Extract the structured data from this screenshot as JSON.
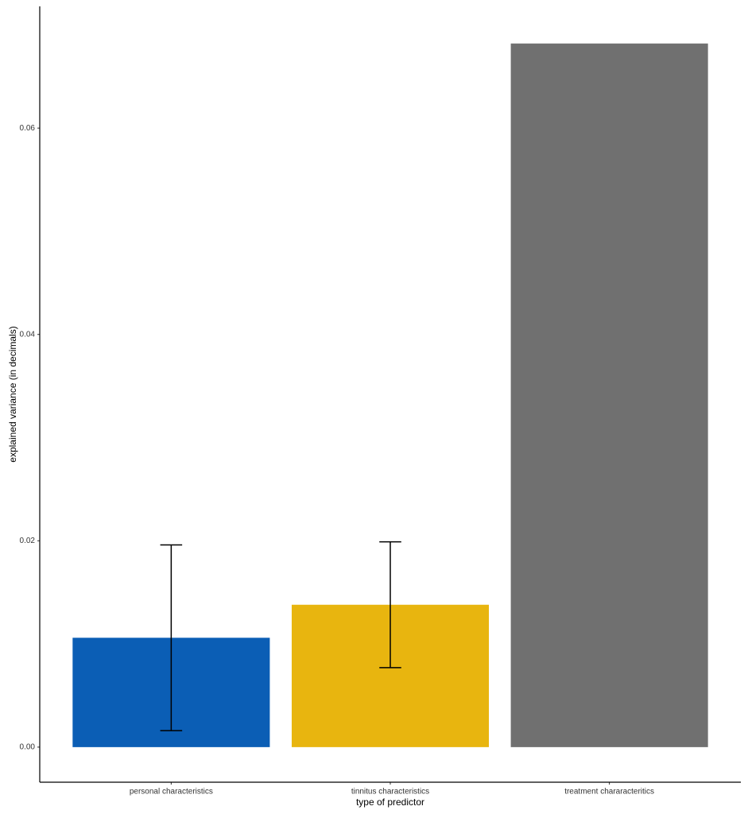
{
  "chart_data": {
    "type": "bar",
    "x_label": "type of predictor",
    "y_label": "explained variance (in decimals)",
    "categories": [
      "personal characteristics",
      "tinnitus characteristics",
      "treatment chararacteritics"
    ],
    "values": [
      0.0106,
      0.0138,
      0.0682
    ],
    "errors": [
      0.009,
      0.0061,
      null
    ],
    "colors": [
      "#0b5eb5",
      "#e8b50f",
      "#707070"
    ],
    "error_color": "#000000",
    "ylim": [
      -0.0034,
      0.0718
    ],
    "yticks": [
      {
        "value": 0,
        "label": "0.00"
      },
      {
        "value": 0.02,
        "label": "0.02"
      },
      {
        "value": 0.04,
        "label": "0.04"
      },
      {
        "value": 0.06,
        "label": "0.06"
      }
    ],
    "grid": false
  }
}
